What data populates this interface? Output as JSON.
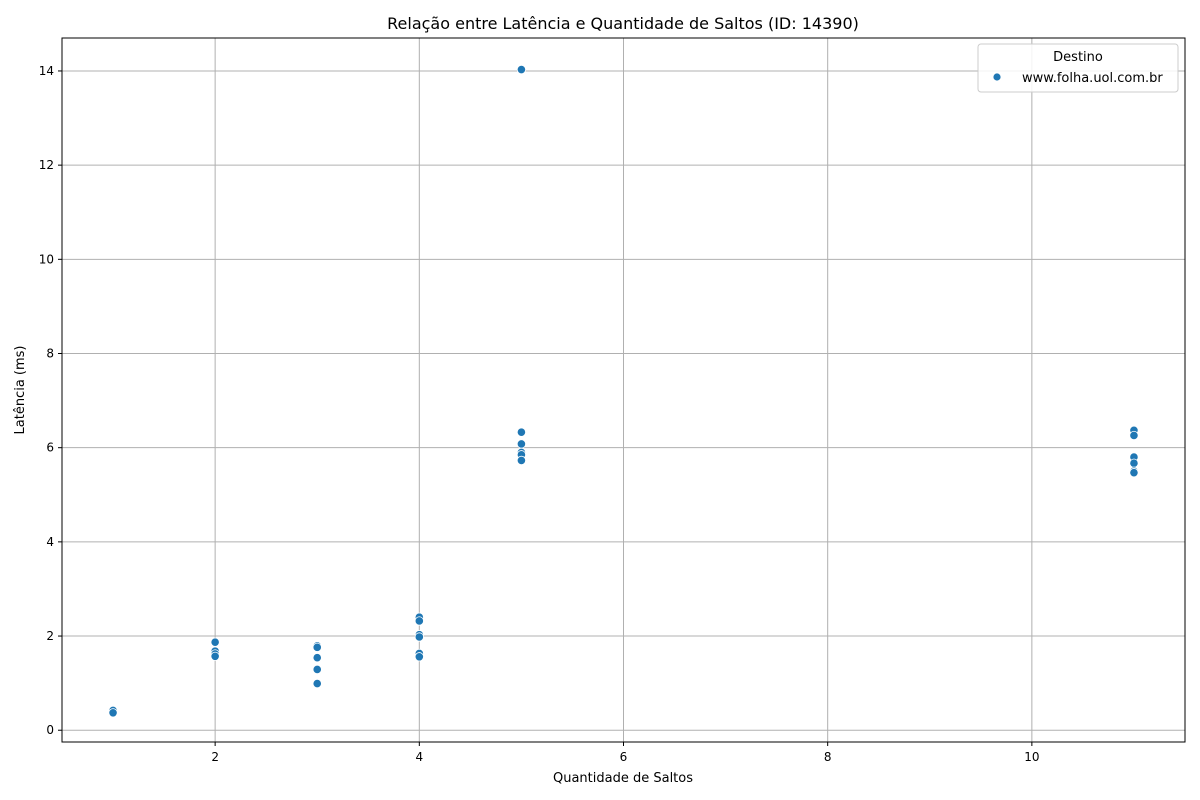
{
  "chart_data": {
    "type": "scatter",
    "title": "Relação entre Latência e Quantidade de Saltos (ID: 14390)",
    "xlabel": "Quantidade de Saltos",
    "ylabel": "Latência (ms)",
    "xlim": [
      0.5,
      11.5
    ],
    "ylim": [
      -0.25,
      14.7
    ],
    "xticks": [
      2,
      4,
      6,
      8,
      10
    ],
    "yticks": [
      0,
      2,
      4,
      6,
      8,
      10,
      12,
      14
    ],
    "grid": true,
    "legend": {
      "title": "Destino",
      "position": "top-right"
    },
    "series": [
      {
        "name": "www.folha.uol.com.br",
        "color": "#1f77b4",
        "points": [
          {
            "x": 1,
            "y": 0.42
          },
          {
            "x": 1,
            "y": 0.37
          },
          {
            "x": 2,
            "y": 1.87
          },
          {
            "x": 2,
            "y": 1.68
          },
          {
            "x": 2,
            "y": 1.62
          },
          {
            "x": 2,
            "y": 1.57
          },
          {
            "x": 3,
            "y": 1.79
          },
          {
            "x": 3,
            "y": 1.76
          },
          {
            "x": 3,
            "y": 1.54
          },
          {
            "x": 3,
            "y": 1.29
          },
          {
            "x": 3,
            "y": 0.99
          },
          {
            "x": 4,
            "y": 2.4
          },
          {
            "x": 4,
            "y": 2.32
          },
          {
            "x": 4,
            "y": 2.03
          },
          {
            "x": 4,
            "y": 1.98
          },
          {
            "x": 4,
            "y": 1.63
          },
          {
            "x": 4,
            "y": 1.56
          },
          {
            "x": 5,
            "y": 14.03
          },
          {
            "x": 5,
            "y": 6.33
          },
          {
            "x": 5,
            "y": 6.08
          },
          {
            "x": 5,
            "y": 5.9
          },
          {
            "x": 5,
            "y": 5.85
          },
          {
            "x": 5,
            "y": 5.73
          },
          {
            "x": 11,
            "y": 6.37
          },
          {
            "x": 11,
            "y": 6.26
          },
          {
            "x": 11,
            "y": 5.8
          },
          {
            "x": 11,
            "y": 5.67
          },
          {
            "x": 11,
            "y": 5.5
          },
          {
            "x": 11,
            "y": 5.47
          }
        ]
      }
    ]
  }
}
